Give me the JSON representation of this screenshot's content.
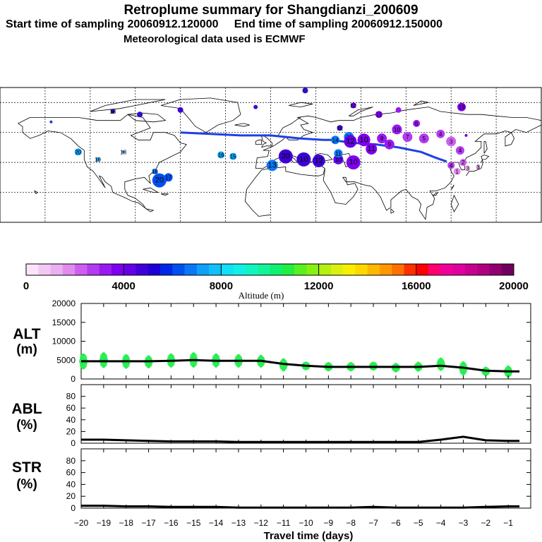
{
  "header": {
    "title": "Retroplume summary for Shangdianzi_200609",
    "start_label": "Start time of sampling 20060912.120000",
    "end_label": "End time of sampling 20060912.150000",
    "met_label": "Meteorological data used is ECMWF"
  },
  "colorbar": {
    "ticks": [
      "0",
      "4000",
      "8000",
      "12000",
      "16000",
      "20000"
    ],
    "label": "Altitude (m)",
    "colors": [
      "#fbe4fb",
      "#f3c9f3",
      "#eab0f0",
      "#e08cef",
      "#cc5fef",
      "#b33bf2",
      "#9a19f2",
      "#7f00f0",
      "#6600e6",
      "#3f00d8",
      "#1e00d6",
      "#0028e6",
      "#0050f0",
      "#0a78f4",
      "#0fa0f8",
      "#10c0fa",
      "#10e0f8",
      "#10f0e6",
      "#10f5c0",
      "#10f59a",
      "#10f070",
      "#20ef40",
      "#58f020",
      "#88f010",
      "#b4f010",
      "#dcf010",
      "#f8f000",
      "#ffd800",
      "#ffb800",
      "#ff9800",
      "#ff7000",
      "#ff3000",
      "#ff0000",
      "#ff0070",
      "#f0009a",
      "#e000a0",
      "#c80090",
      "#b00080",
      "#900070",
      "#700060"
    ]
  },
  "chart_data": [
    {
      "type": "line",
      "title": "ALT (m)",
      "panel_label": "ALT",
      "unit_label": "(m)",
      "ylim": [
        0,
        20000
      ],
      "yticks": [
        "20000",
        "15000",
        "10000",
        "5000",
        "0"
      ],
      "x": [
        -20,
        -19,
        -18,
        -17,
        -16,
        -15,
        -14,
        -13,
        -12,
        -11,
        -10,
        -9,
        -8,
        -7,
        -6,
        -5,
        -4,
        -3,
        -2,
        -1,
        -0.5
      ],
      "values": [
        4700,
        4700,
        4700,
        4700,
        4800,
        5000,
        4800,
        4800,
        4800,
        4000,
        3500,
        3200,
        3200,
        3200,
        3200,
        3200,
        3500,
        3000,
        2200,
        2000,
        2000
      ],
      "spread": {
        "x": [
          -19.9,
          -19.0,
          -18.0,
          -17.0,
          -16.0,
          -15.0,
          -14.0,
          -13.0,
          -12.0,
          -11.0,
          -10.0,
          -9.0,
          -8.0,
          -7.0,
          -6.0,
          -5.0,
          -4.0,
          -3.0,
          -2.0,
          -1.0
        ],
        "low": [
          2800,
          3200,
          3000,
          3100,
          3300,
          3300,
          3300,
          3300,
          3300,
          2300,
          2600,
          2300,
          2300,
          2500,
          2000,
          2200,
          2400,
          1200,
          1000,
          600
        ],
        "high": [
          6500,
          6800,
          6300,
          6000,
          6500,
          6800,
          6500,
          6300,
          6100,
          5200,
          4300,
          4200,
          4200,
          4300,
          4000,
          4300,
          5400,
          4400,
          3000,
          3300
        ]
      }
    },
    {
      "type": "line",
      "title": "ABL (%)",
      "panel_label": "ABL",
      "unit_label": "(%)",
      "ylim": [
        0,
        100
      ],
      "yticks": [
        "80",
        "60",
        "40",
        "20",
        "0"
      ],
      "x": [
        -20,
        -19,
        -18,
        -17,
        -16,
        -15,
        -14,
        -13,
        -12,
        -11,
        -10,
        -9,
        -8,
        -7,
        -6,
        -5,
        -4,
        -3,
        -2,
        -1,
        -0.5
      ],
      "values": [
        6,
        6,
        5,
        4,
        3,
        3,
        3,
        2,
        2,
        2,
        2,
        2,
        2,
        2,
        2,
        2,
        6,
        11,
        5,
        4,
        4
      ]
    },
    {
      "type": "line",
      "title": "STR (%)",
      "panel_label": "STR",
      "unit_label": "(%)",
      "ylim": [
        0,
        100
      ],
      "yticks": [
        "80",
        "60",
        "40",
        "20",
        "0"
      ],
      "x": [
        -20,
        -19,
        -18,
        -17,
        -16,
        -15,
        -14,
        -13,
        -12,
        -11,
        -10,
        -9,
        -8,
        -7,
        -6,
        -5,
        -4,
        -3,
        -2,
        -1,
        -0.5
      ],
      "values": [
        4,
        4,
        3,
        3,
        2,
        2,
        2,
        1,
        1,
        1,
        1,
        1,
        1,
        2,
        1,
        1,
        1,
        1,
        2,
        3,
        3
      ]
    }
  ],
  "xaxis": {
    "label": "Travel time (days)",
    "ticks": [
      "−20",
      "−19",
      "−18",
      "−17",
      "−16",
      "−15",
      "−14",
      "−13",
      "−12",
      "−11",
      "−10",
      "−9",
      "−8",
      "−7",
      "−6",
      "−5",
      "−4",
      "−3",
      "−2",
      "−1"
    ],
    "xlim": [
      -20,
      0
    ]
  },
  "map": {
    "track_color": "#1e40e6",
    "track": [
      [
        -60,
        60
      ],
      [
        -40,
        59
      ],
      [
        -20,
        58
      ],
      [
        0,
        58
      ],
      [
        20,
        56
      ],
      [
        35,
        55
      ],
      [
        40,
        55
      ],
      [
        55,
        53
      ],
      [
        70,
        52
      ],
      [
        85,
        50
      ],
      [
        100,
        47
      ],
      [
        110,
        43
      ],
      [
        117,
        40.6
      ]
    ],
    "clusters": [
      {
        "lon": 23,
        "lat": 88,
        "r": 4,
        "color": "#2a10c8",
        "label": ""
      },
      {
        "lon": -146,
        "lat": 67,
        "r": 2,
        "color": "#1e3cd8",
        "label": ""
      },
      {
        "lon": -105,
        "lat": 74,
        "r": 3,
        "color": "#1e00d6",
        "label": "18"
      },
      {
        "lon": -87,
        "lat": 72,
        "r": 4,
        "color": "#2a10c8",
        "label": ""
      },
      {
        "lon": -60,
        "lat": 75,
        "r": 4,
        "color": "#3f00d8",
        "label": ""
      },
      {
        "lon": -10,
        "lat": 77,
        "r": 3,
        "color": "#3f00d8",
        "label": ""
      },
      {
        "lon": 55,
        "lat": 78,
        "r": 4,
        "color": "#6600e6",
        "label": "12"
      },
      {
        "lon": 72,
        "lat": 72,
        "r": 5,
        "color": "#7f00f0",
        "label": "11"
      },
      {
        "lon": 85,
        "lat": 75,
        "r": 4,
        "color": "#9a19f2",
        "label": ""
      },
      {
        "lon": 127,
        "lat": 77,
        "r": 6,
        "color": "#7f00f0",
        "label": "19"
      },
      {
        "lon": -128,
        "lat": 47,
        "r": 5,
        "color": "#0fa0f8",
        "label": "20"
      },
      {
        "lon": -115,
        "lat": 42,
        "r": 3,
        "color": "#0fa0f8",
        "label": "19"
      },
      {
        "lon": -98,
        "lat": 47,
        "r": 2,
        "color": "#0a78f4",
        "label": "18"
      },
      {
        "lon": -77,
        "lat": 34,
        "r": 4,
        "color": "#0a78f4",
        "label": "16"
      },
      {
        "lon": -74,
        "lat": 28,
        "r": 10,
        "color": "#0050f0",
        "label": "20"
      },
      {
        "lon": -68,
        "lat": 30,
        "r": 6,
        "color": "#0050f0",
        "label": "17"
      },
      {
        "lon": -33,
        "lat": 45,
        "r": 5,
        "color": "#0fa0f8",
        "label": "16"
      },
      {
        "lon": -25,
        "lat": 44,
        "r": 5,
        "color": "#0fa0f8",
        "label": "15"
      },
      {
        "lon": 1,
        "lat": 38,
        "r": 8,
        "color": "#0a78f4",
        "label": "13"
      },
      {
        "lon": 10,
        "lat": 44,
        "r": 10,
        "color": "#3f00d8",
        "label": "20"
      },
      {
        "lon": 22,
        "lat": 42,
        "r": 10,
        "color": "#3f00d8",
        "label": "10"
      },
      {
        "lon": 32,
        "lat": 41,
        "r": 9,
        "color": "#3f00d8",
        "label": "12"
      },
      {
        "lon": 45,
        "lat": 42,
        "r": 7,
        "color": "#6600e6",
        "label": "10"
      },
      {
        "lon": 55,
        "lat": 40,
        "r": 10,
        "color": "#7f00f0",
        "label": "10"
      },
      {
        "lon": 45,
        "lat": 46,
        "r": 6,
        "color": "#0a78f4",
        "label": "11"
      },
      {
        "lon": 43,
        "lat": 55,
        "r": 6,
        "color": "#0a78f4",
        "label": "14"
      },
      {
        "lon": 52,
        "lat": 57,
        "r": 7,
        "color": "#0a78f4",
        "label": "13"
      },
      {
        "lon": 46,
        "lat": 63,
        "r": 4,
        "color": "#3f00d8",
        "label": "12"
      },
      {
        "lon": 53,
        "lat": 54,
        "r": 9,
        "color": "#6600e6",
        "label": "12"
      },
      {
        "lon": 62,
        "lat": 55,
        "r": 9,
        "color": "#7f00f0",
        "label": "10"
      },
      {
        "lon": 67,
        "lat": 49,
        "r": 8,
        "color": "#7f00f0",
        "label": "11"
      },
      {
        "lon": 74,
        "lat": 56,
        "r": 7,
        "color": "#9a19f2",
        "label": "8"
      },
      {
        "lon": 79,
        "lat": 52,
        "r": 7,
        "color": "#9a19f2",
        "label": "9"
      },
      {
        "lon": 84,
        "lat": 62,
        "r": 7,
        "color": "#9a19f2",
        "label": "10"
      },
      {
        "lon": 91,
        "lat": 57,
        "r": 7,
        "color": "#b33bf2",
        "label": "7"
      },
      {
        "lon": 97,
        "lat": 66,
        "r": 5,
        "color": "#9a19f2",
        "label": "6"
      },
      {
        "lon": 102,
        "lat": 56,
        "r": 7,
        "color": "#b33bf2",
        "label": "5"
      },
      {
        "lon": 113,
        "lat": 59,
        "r": 6,
        "color": "#b33bf2",
        "label": "4"
      },
      {
        "lon": 120,
        "lat": 54,
        "r": 7,
        "color": "#cc5fef",
        "label": "3"
      },
      {
        "lon": 126,
        "lat": 48,
        "r": 6,
        "color": "#b33bf2",
        "label": "4"
      },
      {
        "lon": 128,
        "lat": 40,
        "r": 5,
        "color": "#cc5fef",
        "label": "2"
      },
      {
        "lon": 120,
        "lat": 38,
        "r": 5,
        "color": "#b33bf2",
        "label": "4"
      },
      {
        "lon": 124,
        "lat": 34,
        "r": 5,
        "color": "#e08cef",
        "label": "1"
      },
      {
        "lon": 131,
        "lat": 36,
        "r": 4,
        "color": "#eab0f0",
        "label": "3"
      },
      {
        "lon": 138,
        "lat": 37,
        "r": 3,
        "color": "#e08cef",
        "label": "3"
      },
      {
        "lon": 130,
        "lat": 58,
        "r": 2,
        "color": "#6600e6",
        "label": ""
      }
    ]
  }
}
